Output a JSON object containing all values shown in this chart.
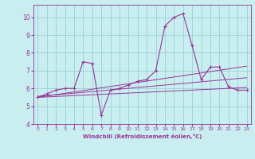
{
  "xlabel": "Windchill (Refroidissement éolien,°C)",
  "background_color": "#c8eef0",
  "grid_color": "#a0d4d8",
  "line_color": "#993399",
  "xlim": [
    -0.5,
    23.5
  ],
  "ylim": [
    4,
    10.7
  ],
  "xticks": [
    0,
    1,
    2,
    3,
    4,
    5,
    6,
    7,
    8,
    9,
    10,
    11,
    12,
    13,
    14,
    15,
    16,
    17,
    18,
    19,
    20,
    21,
    22,
    23
  ],
  "yticks": [
    4,
    5,
    6,
    7,
    8,
    9,
    10
  ],
  "hours": [
    0,
    1,
    2,
    3,
    4,
    5,
    6,
    7,
    8,
    9,
    10,
    11,
    12,
    13,
    14,
    15,
    16,
    17,
    18,
    19,
    20,
    21,
    22,
    23
  ],
  "temp": [
    5.5,
    5.7,
    5.9,
    6.0,
    6.0,
    7.5,
    7.4,
    4.5,
    5.9,
    6.0,
    6.2,
    6.4,
    6.5,
    7.0,
    9.5,
    10.0,
    10.2,
    8.4,
    6.5,
    7.2,
    7.2,
    6.1,
    5.9,
    5.9
  ],
  "line1_x": [
    0,
    23
  ],
  "line1_y": [
    5.5,
    6.05
  ],
  "line2_x": [
    0,
    23
  ],
  "line2_y": [
    5.5,
    7.25
  ],
  "line3_x": [
    0,
    23
  ],
  "line3_y": [
    5.55,
    6.6
  ]
}
